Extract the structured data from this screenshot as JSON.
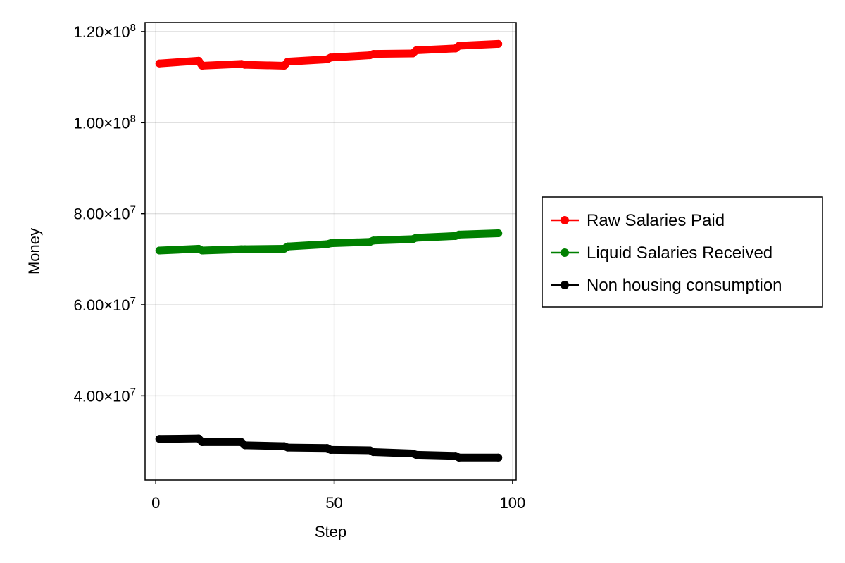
{
  "chart_data": {
    "type": "scatter",
    "title": "",
    "xlabel": "Step",
    "ylabel": "Money",
    "xlim": [
      -3,
      101
    ],
    "ylim": [
      21500000,
      122000000
    ],
    "xticks": [
      0,
      50,
      100
    ],
    "xtick_labels": [
      "0",
      "50",
      "100"
    ],
    "yticks": [
      40000000,
      60000000,
      80000000,
      100000000,
      120000000
    ],
    "ytick_labels": [
      {
        "mant": "4.00×10",
        "exp": "7"
      },
      {
        "mant": "6.00×10",
        "exp": "7"
      },
      {
        "mant": "8.00×10",
        "exp": "7"
      },
      {
        "mant": "1.00×10",
        "exp": "8"
      },
      {
        "mant": "1.20×10",
        "exp": "8"
      }
    ],
    "grid": true,
    "legend_position": "right",
    "x": [
      1,
      12,
      13,
      24,
      25,
      36,
      37,
      48,
      49,
      60,
      61,
      72,
      73,
      84,
      85,
      96
    ],
    "series": [
      {
        "name": "Raw Salaries Paid",
        "color": "#ff0000",
        "values": [
          113000000,
          113600000,
          112500000,
          112900000,
          112700000,
          112500000,
          113400000,
          113900000,
          114300000,
          114800000,
          115100000,
          115200000,
          115900000,
          116300000,
          116900000,
          117300000
        ]
      },
      {
        "name": "Liquid Salaries Received",
        "color": "#008000",
        "values": [
          71900000,
          72300000,
          71900000,
          72200000,
          72200000,
          72300000,
          72800000,
          73300000,
          73500000,
          73800000,
          74100000,
          74400000,
          74700000,
          75100000,
          75400000,
          75700000
        ]
      },
      {
        "name": "Non housing consumption",
        "color": "#000000",
        "values": [
          30500000,
          30600000,
          29800000,
          29800000,
          29100000,
          28900000,
          28600000,
          28500000,
          28100000,
          28000000,
          27600000,
          27300000,
          27000000,
          26800000,
          26400000,
          26400000
        ]
      }
    ]
  }
}
